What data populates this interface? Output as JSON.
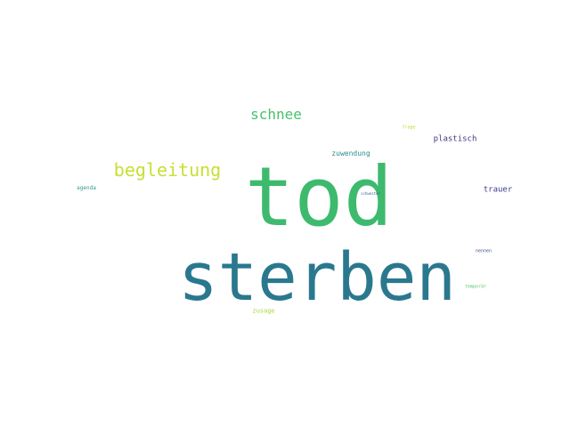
{
  "words": [
    {
      "text": "tod",
      "color": "#3dba6e"
    },
    {
      "text": "sterben",
      "color": "#2a788e"
    },
    {
      "text": "begleitung",
      "color": "#c8df34"
    },
    {
      "text": "schnee",
      "color": "#4ac16d"
    },
    {
      "text": "plastisch",
      "color": "#463480"
    },
    {
      "text": "zuwendung",
      "color": "#2c8c8c"
    },
    {
      "text": "trauer",
      "color": "#3b3b8a"
    },
    {
      "text": "agenda",
      "color": "#2e9c8c"
    },
    {
      "text": "frage",
      "color": "#b5de2b"
    },
    {
      "text": "schwester",
      "color": "#35608d"
    },
    {
      "text": "nennen",
      "color": "#3a548c"
    },
    {
      "text": "temporär",
      "color": "#5ac864"
    },
    {
      "text": "zusage",
      "color": "#9fda3a"
    }
  ]
}
